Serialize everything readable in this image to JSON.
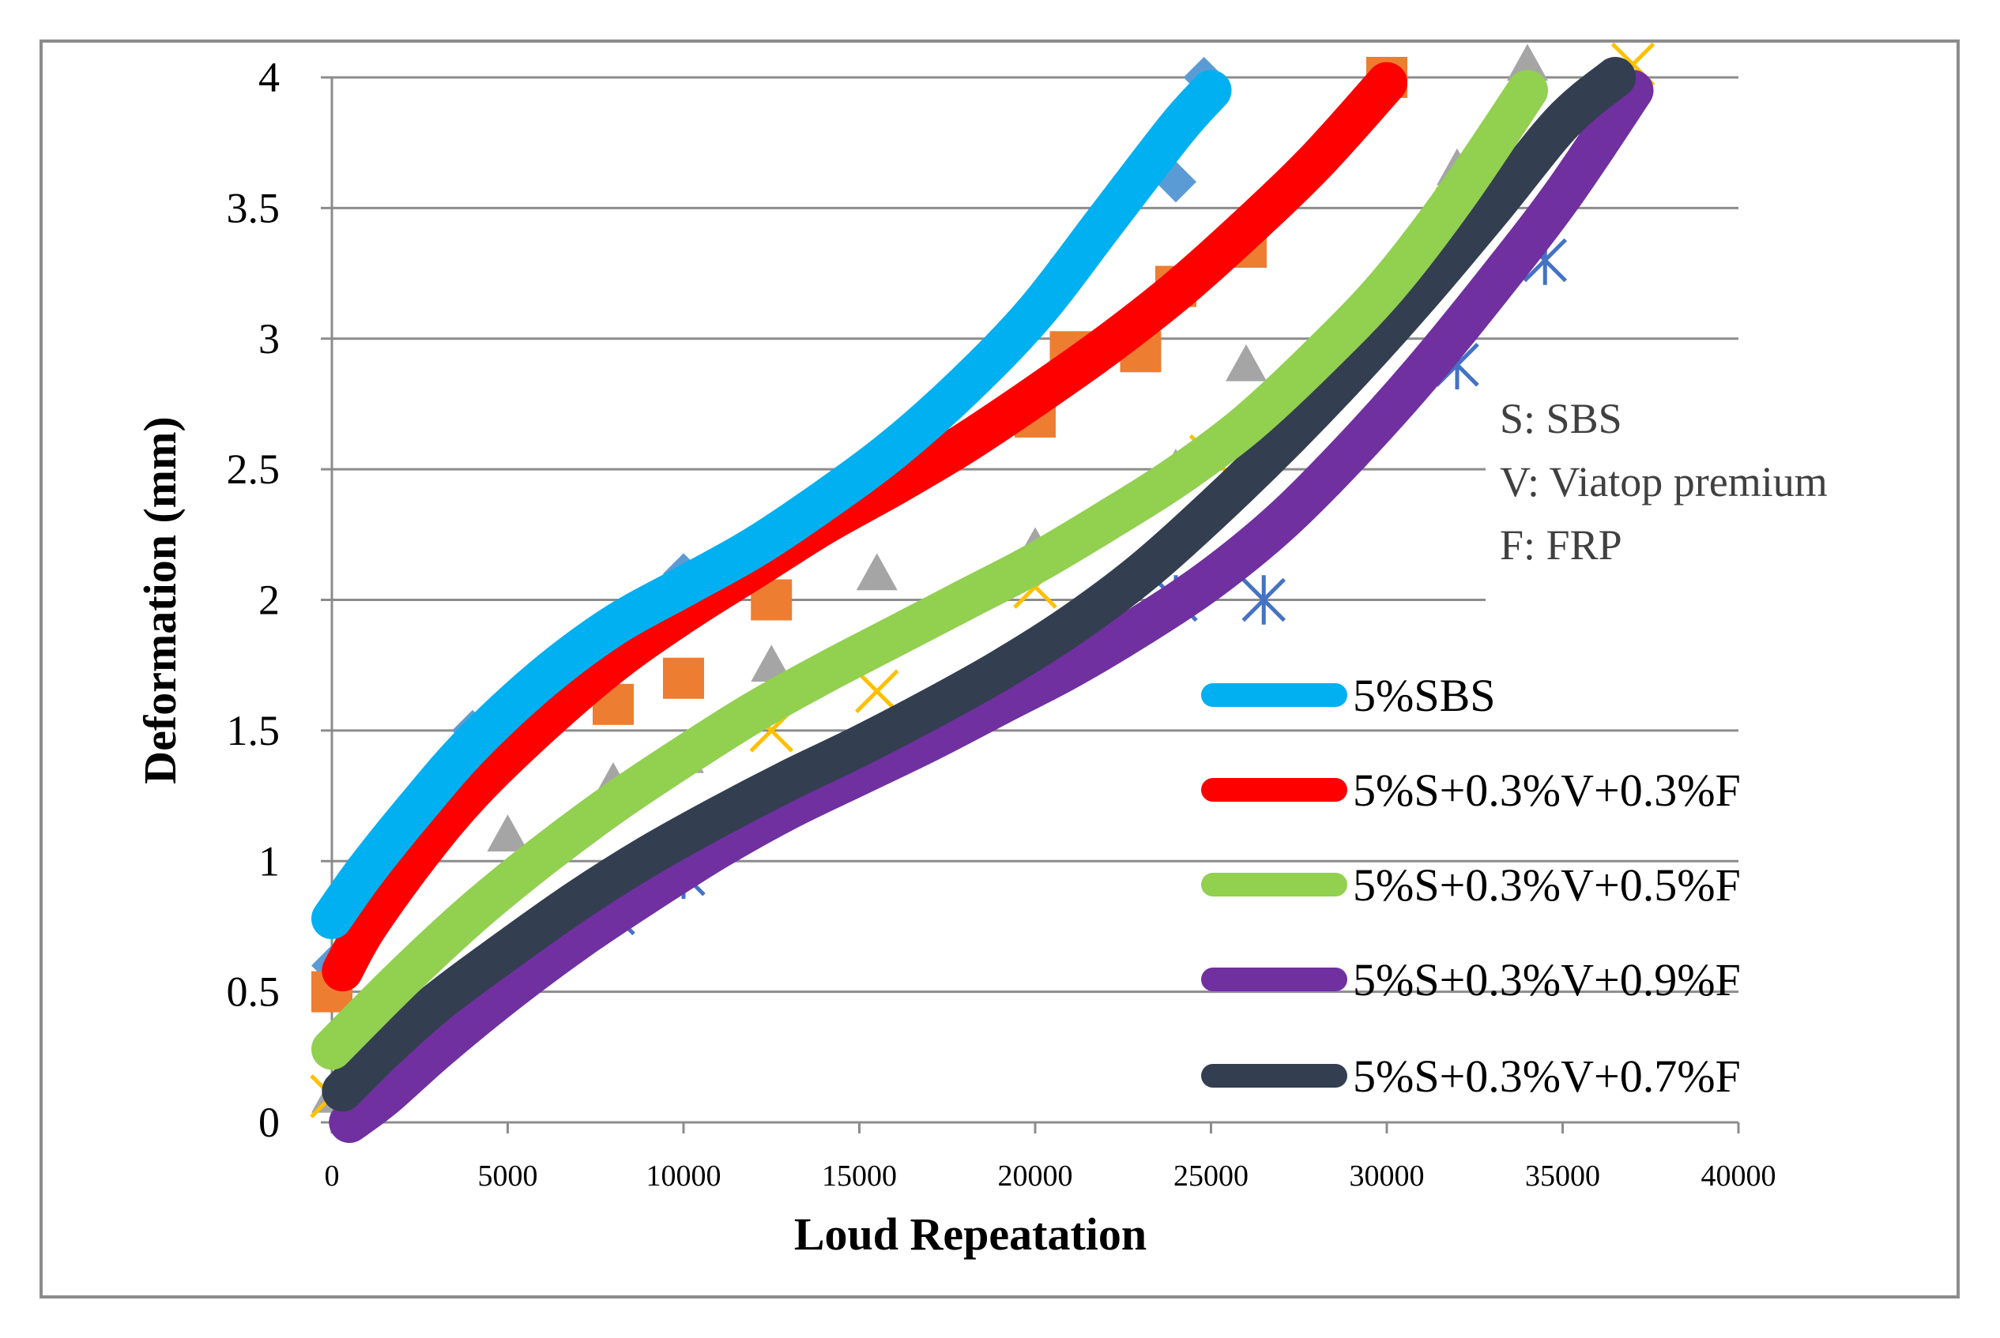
{
  "chart_data": {
    "type": "line",
    "title": "",
    "xlabel": "Loud Repeatation",
    "ylabel": "Deformation (mm)",
    "xlim": [
      0,
      40000
    ],
    "ylim": [
      0,
      4
    ],
    "x_ticks": [
      "0",
      "5000",
      "10000",
      "15000",
      "20000",
      "25000",
      "30000",
      "35000",
      "40000"
    ],
    "y_ticks": [
      "0",
      "0.5",
      "1",
      "1.5",
      "2",
      "2.5",
      "3",
      "3.5",
      "4"
    ],
    "grid": "horizontal",
    "note": [
      "S: SBS",
      "V: Viatop premium",
      "F: FRP"
    ],
    "legend_position": "right",
    "series": [
      {
        "name": "5%SBS",
        "color": "#00b0f0",
        "marker": "diamond",
        "marker_color": "#5b9bd5",
        "x": [
          0,
          1000,
          2500,
          4000,
          6000,
          8000,
          10000,
          12000,
          14000,
          16000,
          18000,
          20000,
          22000,
          24000,
          25000
        ],
        "y": [
          0.78,
          0.97,
          1.22,
          1.45,
          1.7,
          1.9,
          2.05,
          2.2,
          2.38,
          2.58,
          2.82,
          3.1,
          3.45,
          3.8,
          3.95
        ],
        "points_x": [
          0,
          1000,
          4000,
          10000,
          16000,
          21000,
          24000,
          24800
        ],
        "points_y": [
          0.6,
          1.0,
          1.5,
          2.1,
          2.6,
          3.3,
          3.6,
          4.0
        ]
      },
      {
        "name": "5%S+0.3%V+0.3%F",
        "color": "#ff0000",
        "marker": "square",
        "marker_color": "#ed7d31",
        "x": [
          300,
          1000,
          2500,
          4000,
          6000,
          8000,
          10000,
          12000,
          14000,
          16000,
          18000,
          20000,
          22000,
          24000,
          26000,
          28000,
          30000
        ],
        "y": [
          0.58,
          0.75,
          1.03,
          1.27,
          1.53,
          1.76,
          1.95,
          2.12,
          2.29,
          2.44,
          2.6,
          2.78,
          2.97,
          3.18,
          3.42,
          3.68,
          3.98
        ],
        "points_x": [
          0,
          1000,
          8000,
          10000,
          12500,
          20000,
          21000,
          23000,
          24000,
          26000,
          30000
        ],
        "points_y": [
          0.5,
          0.9,
          1.6,
          1.7,
          2.0,
          2.7,
          2.95,
          2.95,
          3.2,
          3.35,
          4.0
        ]
      },
      {
        "name": "5%S+0.3%V+0.5%F",
        "color": "#92d050",
        "marker": "triangle",
        "marker_color": "#a5a5a5",
        "x": [
          0,
          2000,
          4000,
          6000,
          8000,
          10000,
          12000,
          14000,
          16000,
          18000,
          20000,
          22000,
          24000,
          26000,
          28000,
          30000,
          32000,
          34000
        ],
        "y": [
          0.28,
          0.55,
          0.8,
          1.02,
          1.22,
          1.4,
          1.57,
          1.72,
          1.86,
          2.0,
          2.14,
          2.3,
          2.47,
          2.67,
          2.92,
          3.2,
          3.55,
          3.95
        ],
        "points_x": [
          0,
          5000,
          8000,
          10000,
          12500,
          15500,
          20000,
          24000,
          26000,
          32000,
          34000
        ],
        "points_y": [
          0.1,
          1.1,
          1.3,
          1.4,
          1.75,
          2.1,
          2.2,
          2.5,
          2.9,
          3.65,
          4.05
        ]
      },
      {
        "name": "5%S+0.3%V+0.9%F",
        "color": "#7030a0",
        "marker": "star",
        "marker_color": "#4472c4",
        "x": [
          500,
          1500,
          3000,
          5000,
          7000,
          9000,
          11000,
          13000,
          15000,
          17000,
          19000,
          21000,
          23000,
          25000,
          27000,
          29000,
          31000,
          33000,
          35000,
          37000
        ],
        "y": [
          0.0,
          0.1,
          0.28,
          0.5,
          0.7,
          0.88,
          1.05,
          1.2,
          1.33,
          1.46,
          1.6,
          1.74,
          1.9,
          2.08,
          2.3,
          2.57,
          2.87,
          3.2,
          3.55,
          3.95
        ],
        "points_x": [
          1000,
          8000,
          10000,
          20000,
          24000,
          26500,
          32000,
          34500
        ],
        "points_y": [
          0.1,
          0.8,
          0.95,
          1.7,
          2.0,
          2.0,
          2.9,
          3.3
        ]
      },
      {
        "name": "5%S+0.3%V+0.7%F",
        "color": "#333f50",
        "marker": "x",
        "marker_color": "#ffc000",
        "x": [
          300,
          1500,
          3000,
          5000,
          7000,
          9000,
          11000,
          13000,
          15000,
          17000,
          19000,
          21000,
          23000,
          25000,
          27000,
          29000,
          31000,
          33000,
          35000,
          36500
        ],
        "y": [
          0.12,
          0.28,
          0.46,
          0.66,
          0.85,
          1.02,
          1.17,
          1.31,
          1.44,
          1.58,
          1.73,
          1.9,
          2.1,
          2.34,
          2.6,
          2.88,
          3.18,
          3.5,
          3.83,
          4.0
        ],
        "points_x": [
          0,
          12500,
          15500,
          20000,
          25000,
          31000,
          32000,
          37000
        ],
        "points_y": [
          0.1,
          1.5,
          1.65,
          2.05,
          2.55,
          3.3,
          3.5,
          4.05
        ]
      }
    ]
  }
}
